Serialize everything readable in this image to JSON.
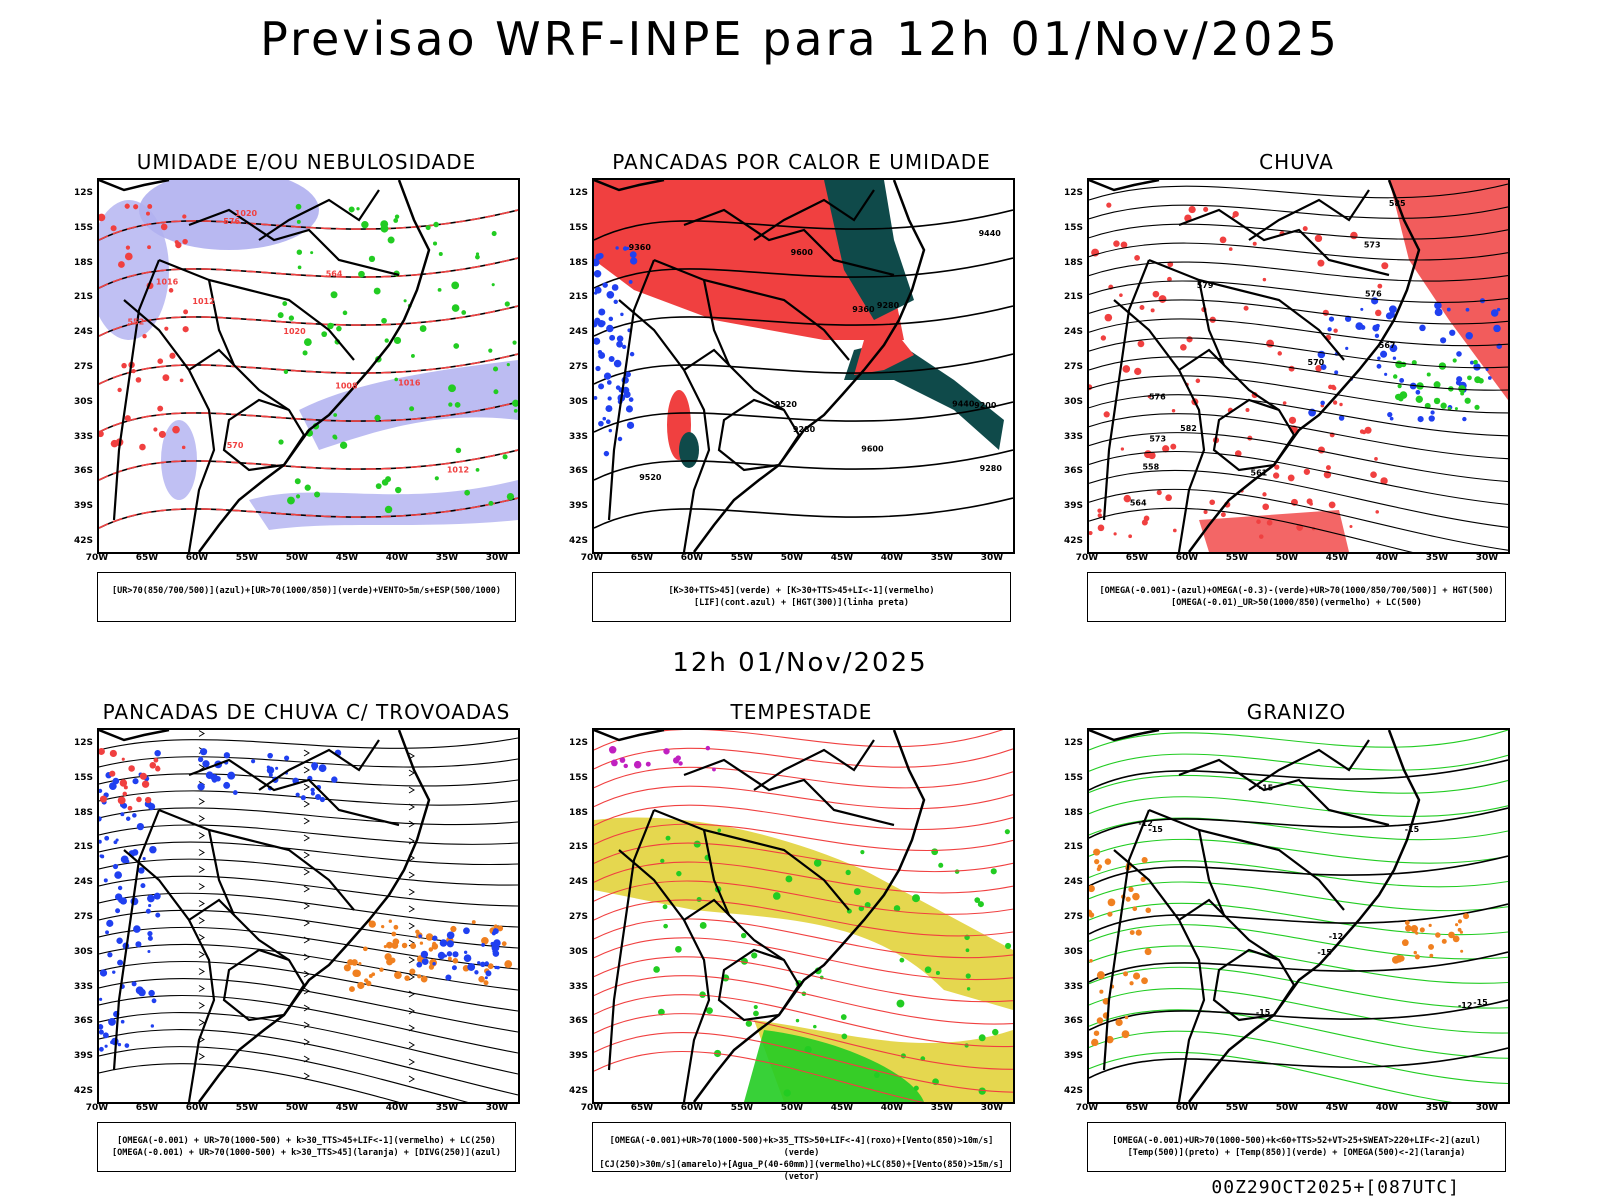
{
  "title": "Previsao WRF-INPE  para 12h 01/Nov/2025",
  "mid_title": "12h 01/Nov/2025",
  "footer": "00Z29OCT2025+[087UTC]",
  "lat_labels": [
    "12S",
    "15S",
    "18S",
    "21S",
    "24S",
    "27S",
    "30S",
    "33S",
    "36S",
    "39S",
    "42S"
  ],
  "lon_labels": [
    "70W",
    "65W",
    "60W",
    "55W",
    "50W",
    "45W",
    "40W",
    "35W",
    "30W"
  ],
  "panels": [
    {
      "title": "UMIDADE E/OU NEBULOSIDADE",
      "legend": [
        "[UR>70(850/700/500)](azul)+[UR>70(1000/850)](verde)+VENTO>5m/s+ESP(500/1000)"
      ],
      "labels": [
        "1012",
        "1016",
        "1020",
        "576",
        "570",
        "564",
        "552",
        "1008",
        "1012",
        "1016",
        "1020"
      ]
    },
    {
      "title": "PANCADAS POR CALOR E UMIDADE",
      "legend": [
        "[K>30+TTS>45](verde) + [K>30+TTS>45+LI<-1](vermelho)",
        "[LIF](cont.azul) + [HGT(300)](linha preta)"
      ],
      "labels": [
        "9600",
        "9600",
        "9520",
        "9440",
        "9440",
        "9360",
        "9360",
        "9280",
        "9280",
        "9200",
        "9280",
        "9520"
      ]
    },
    {
      "title": "CHUVA",
      "legend": [
        "[OMEGA(-0.001)-(azul)+OMEGA(-0.3)-(verde)+UR>70(1000/850/700/500)] + HGT(500)",
        "[OMEGA(-0.01)_UR>50(1000/850)(vermelho) + LC(500)"
      ],
      "labels": [
        "585",
        "579",
        "576",
        "573",
        "570",
        "567",
        "564",
        "561",
        "558",
        "582",
        "576",
        "573"
      ]
    },
    {
      "title": "PANCADAS DE CHUVA C/ TROVOADAS",
      "legend": [
        "[OMEGA(-0.001) + UR>70(1000-500) + k>30_TTS>45+LIF<-1](vermelho) + LC(250)",
        "[OMEGA(-0.001) + UR>70(1000-500) + k>30_TTS>45](laranja) + [DIVG(250)](azul)"
      ],
      "labels": []
    },
    {
      "title": "TEMPESTADE",
      "legend": [
        "[OMEGA(-0.001)+UR>70(1000-500)+k>35_TTS>50+LIF<-4](roxo)+[Vento(850)>10m/s](verde)",
        "[CJ(250)>30m/s](amarelo)+[Agua_P(40-60mm)](vermelho)+LC(850)+[Vento(850)>15m/s](vetor)"
      ],
      "labels": []
    },
    {
      "title": "GRANIZO",
      "legend": [
        "[OMEGA(-0.001)+UR>70(1000-500)+k<60+TTS>52+VT>25+SWEAT>220+LIF<-2](azul)",
        "[Temp(500)](preto) + [Temp(850)](verde) + [OMEGA(500)<-2](laranja)"
      ],
      "labels": [
        "-12",
        "-12",
        "-15",
        "-15",
        "-15",
        "-15",
        "-15",
        "-12",
        "-15"
      ]
    }
  ],
  "colors": {
    "moist_blue": "#b0b0f0",
    "green": "#22cc22",
    "red": "#f04040",
    "dark_teal": "#0f4a4a",
    "blue": "#2040f0",
    "yellow": "#e0d030",
    "orange": "#f08020",
    "purple": "#c020c0"
  }
}
